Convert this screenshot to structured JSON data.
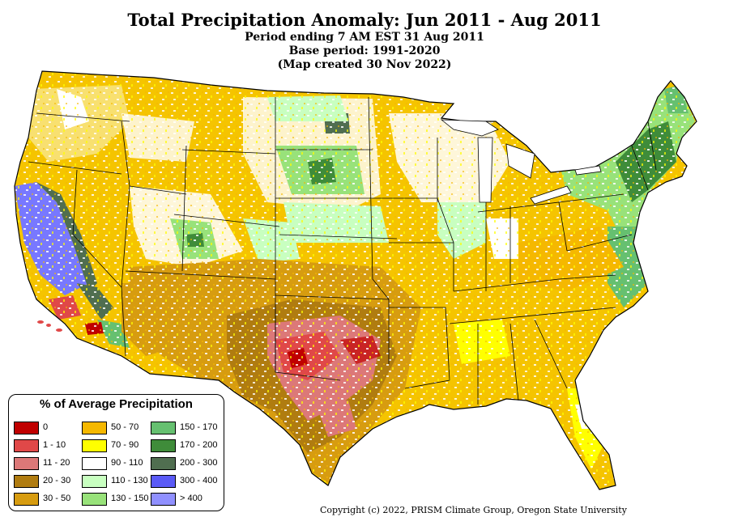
{
  "title": "Total Precipitation Anomaly: Jun 2011 - Aug 2011",
  "subtitle_lines": [
    "Period ending 7 AM EST 31 Aug 2011",
    "Base period: 1991-2020",
    "(Map created 30 Nov 2022)"
  ],
  "legend": {
    "title": "% of Average Precipitation",
    "items": [
      {
        "label": "0",
        "color": "#c00000"
      },
      {
        "label": "1 - 10",
        "color": "#e04848"
      },
      {
        "label": "11 - 20",
        "color": "#dc7878"
      },
      {
        "label": "20 - 30",
        "color": "#b07c10"
      },
      {
        "label": "30 - 50",
        "color": "#d79c10"
      },
      {
        "label": "50 - 70",
        "color": "#f5b800"
      },
      {
        "label": "70 - 90",
        "color": "#ffff00"
      },
      {
        "label": "90 - 110",
        "color": "#ffffff"
      },
      {
        "label": "110 - 130",
        "color": "#c8ffc0"
      },
      {
        "label": "130 - 150",
        "color": "#98e27a"
      },
      {
        "label": "150 - 170",
        "color": "#66c070"
      },
      {
        "label": "170 - 200",
        "color": "#3f8c3a"
      },
      {
        "label": "200 - 300",
        "color": "#506e50"
      },
      {
        "label": "300 - 400",
        "color": "#5a5af6"
      },
      {
        "label": "> 400",
        "color": "#9090ff"
      }
    ]
  },
  "copyright": "Copyright (c) 2022, PRISM Climate Group, Oregon State University"
}
